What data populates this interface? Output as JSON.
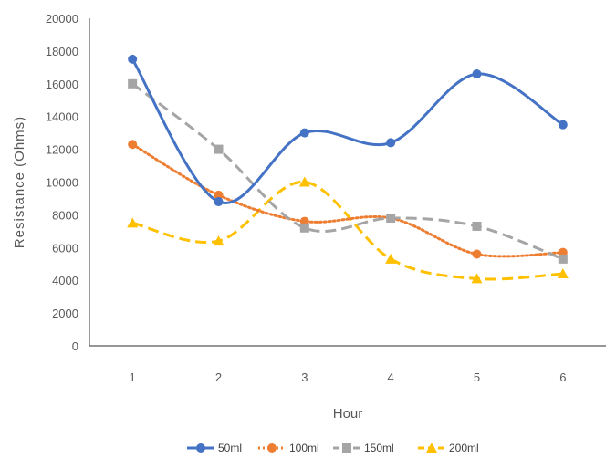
{
  "chart_data": {
    "type": "line",
    "smoothed": true,
    "categories": [
      "1",
      "2",
      "3",
      "4",
      "5",
      "6"
    ],
    "xlabel": "Hour",
    "ylabel": "Resistance (Ohms)",
    "ylim": [
      0,
      20000
    ],
    "yticks": [
      0,
      2000,
      4000,
      6000,
      8000,
      10000,
      12000,
      14000,
      16000,
      18000,
      20000
    ],
    "grid": false,
    "legend_position": "bottom",
    "series": [
      {
        "name": "50ml",
        "color": "#4472C4",
        "marker": "circle",
        "dash": "solid",
        "values": [
          17500,
          8800,
          13000,
          12400,
          16600,
          13500
        ]
      },
      {
        "name": "100ml",
        "color": "#ED7D31",
        "marker": "circle",
        "dash": "dotted",
        "values": [
          12300,
          9200,
          7600,
          7800,
          5600,
          5700
        ]
      },
      {
        "name": "150ml",
        "color": "#A5A5A5",
        "marker": "square",
        "dash": "dashed",
        "values": [
          16000,
          12000,
          7200,
          7800,
          7300,
          5300
        ]
      },
      {
        "name": "200ml",
        "color": "#FFC000",
        "marker": "triangle",
        "dash": "dashed",
        "values": [
          7500,
          6400,
          10000,
          5300,
          4100,
          4400
        ]
      }
    ]
  }
}
